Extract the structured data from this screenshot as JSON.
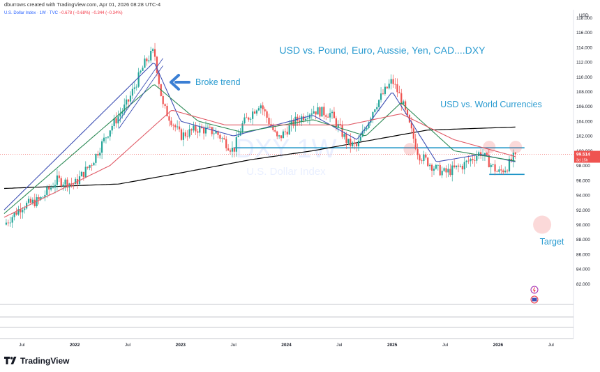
{
  "header": {
    "created_by": "dburrows created with TradingView.com, Apr 01, 2026 08:28 UTC-4",
    "symbol_line": "U.S. Dollar Index · 1W · TVC",
    "change_1": "−0.678 (−0.68%)",
    "change_2": "−0.344 (−0.34%)"
  },
  "watermark": {
    "symbol": "DXY 1W",
    "name": "U.S. Dollar Index"
  },
  "annotations": {
    "title": "USD vs. Pound, Euro, Aussie, Yen, CAD....DXY",
    "subtitle": "USD vs. World Currencies",
    "broke_trend": "Broke trend",
    "target": "Target"
  },
  "price_scale": {
    "currency": "USD",
    "ticks": [
      "118.000",
      "116.000",
      "114.000",
      "112.000",
      "110.000",
      "108.000",
      "106.000",
      "104.000",
      "102.000",
      "100.000",
      "98.000",
      "96.000",
      "94.000",
      "92.000",
      "90.000",
      "88.000",
      "86.000",
      "84.000",
      "82.000"
    ],
    "last_price": "99.514",
    "countdown": "3d 15h"
  },
  "time_scale": {
    "labels": [
      "Jul",
      "2022",
      "Jul",
      "2023",
      "Jul",
      "2024",
      "Jul",
      "2025",
      "Jul",
      "2026",
      "Jul"
    ]
  },
  "brand": {
    "name": "TradingView"
  },
  "colors": {
    "up": "#26a69a",
    "down": "#ef5350",
    "ma_fast": "#3f51b5",
    "ma_mid": "#2e8b57",
    "ma_slow": "#e05a66",
    "ma_long": "#000000",
    "hline": "#2196c8",
    "annotation": "#2a9bd0",
    "arrow": "#3b7fd4",
    "price_tag": "#ef5350"
  },
  "chart_data": {
    "type": "candlestick",
    "timeframe": "1W",
    "x_range": [
      "2021-05",
      "2026-09"
    ],
    "ylim": [
      80,
      119
    ],
    "y_scale": "linear",
    "grid": false,
    "anchor_closes": [
      {
        "date": "2021-05",
        "close": 90.0
      },
      {
        "date": "2021-07",
        "close": 92.5
      },
      {
        "date": "2021-09",
        "close": 93.3
      },
      {
        "date": "2021-11",
        "close": 96.0
      },
      {
        "date": "2022-01",
        "close": 95.5
      },
      {
        "date": "2022-03",
        "close": 98.5
      },
      {
        "date": "2022-05",
        "close": 103.0
      },
      {
        "date": "2022-07",
        "close": 106.5
      },
      {
        "date": "2022-09",
        "close": 112.0
      },
      {
        "date": "2022-10",
        "close": 113.5
      },
      {
        "date": "2022-11",
        "close": 106.0
      },
      {
        "date": "2023-01",
        "close": 102.0
      },
      {
        "date": "2023-03",
        "close": 103.0
      },
      {
        "date": "2023-05",
        "close": 102.5
      },
      {
        "date": "2023-07",
        "close": 100.0
      },
      {
        "date": "2023-08",
        "close": 103.5
      },
      {
        "date": "2023-10",
        "close": 106.5
      },
      {
        "date": "2023-12",
        "close": 101.5
      },
      {
        "date": "2024-02",
        "close": 104.0
      },
      {
        "date": "2024-04",
        "close": 105.5
      },
      {
        "date": "2024-06",
        "close": 105.0
      },
      {
        "date": "2024-08",
        "close": 101.0
      },
      {
        "date": "2024-09",
        "close": 100.5
      },
      {
        "date": "2024-11",
        "close": 106.0
      },
      {
        "date": "2025-01",
        "close": 109.5
      },
      {
        "date": "2025-02",
        "close": 107.0
      },
      {
        "date": "2025-04",
        "close": 99.5
      },
      {
        "date": "2025-06",
        "close": 97.5
      },
      {
        "date": "2025-07",
        "close": 97.0
      },
      {
        "date": "2025-09",
        "close": 98.0
      },
      {
        "date": "2025-11",
        "close": 99.8
      },
      {
        "date": "2026-01",
        "close": 97.0
      },
      {
        "date": "2026-02",
        "close": 97.8
      },
      {
        "date": "2026-03",
        "close": 99.5
      }
    ],
    "last_close": 99.514,
    "horizontal_levels": [
      {
        "price": 100.4,
        "from": "2023-07",
        "to": "2026-04"
      },
      {
        "price": 96.8,
        "from": "2025-12",
        "to": "2026-04"
      }
    ],
    "target_level": 90.0,
    "moving_averages": [
      {
        "role": "fast",
        "points": [
          {
            "date": "2021-05",
            "close": 92.0
          },
          {
            "date": "2022-10",
            "close": 112.0
          },
          {
            "date": "2023-01",
            "close": 104.0
          },
          {
            "date": "2023-07",
            "close": 102.0
          },
          {
            "date": "2024-04",
            "close": 104.8
          },
          {
            "date": "2024-09",
            "close": 101.5
          },
          {
            "date": "2025-01",
            "close": 108.0
          },
          {
            "date": "2025-06",
            "close": 98.5
          },
          {
            "date": "2025-11",
            "close": 99.5
          },
          {
            "date": "2026-03",
            "close": 98.5
          }
        ]
      },
      {
        "role": "mid",
        "points": [
          {
            "date": "2021-05",
            "close": 91.5
          },
          {
            "date": "2022-10",
            "close": 109.0
          },
          {
            "date": "2023-03",
            "close": 104.0
          },
          {
            "date": "2023-08",
            "close": 102.5
          },
          {
            "date": "2024-04",
            "close": 104.2
          },
          {
            "date": "2024-10",
            "close": 102.0
          },
          {
            "date": "2025-02",
            "close": 106.5
          },
          {
            "date": "2025-08",
            "close": 100.0
          },
          {
            "date": "2026-03",
            "close": 98.6
          }
        ]
      },
      {
        "role": "slow",
        "points": [
          {
            "date": "2021-05",
            "close": 91.0
          },
          {
            "date": "2022-05",
            "close": 98.0
          },
          {
            "date": "2022-12",
            "close": 105.5
          },
          {
            "date": "2023-06",
            "close": 103.5
          },
          {
            "date": "2024-01",
            "close": 103.5
          },
          {
            "date": "2024-08",
            "close": 103.5
          },
          {
            "date": "2025-02",
            "close": 105.0
          },
          {
            "date": "2025-08",
            "close": 101.5
          },
          {
            "date": "2026-03",
            "close": 99.2
          }
        ]
      },
      {
        "role": "long",
        "points": [
          {
            "date": "2021-05",
            "close": 94.9
          },
          {
            "date": "2022-06",
            "close": 95.5
          },
          {
            "date": "2023-01",
            "close": 97.0
          },
          {
            "date": "2023-09",
            "close": 98.8
          },
          {
            "date": "2024-04",
            "close": 100.0
          },
          {
            "date": "2024-10",
            "close": 101.3
          },
          {
            "date": "2025-05",
            "close": 102.8
          },
          {
            "date": "2026-03",
            "close": 103.2
          }
        ]
      }
    ]
  }
}
